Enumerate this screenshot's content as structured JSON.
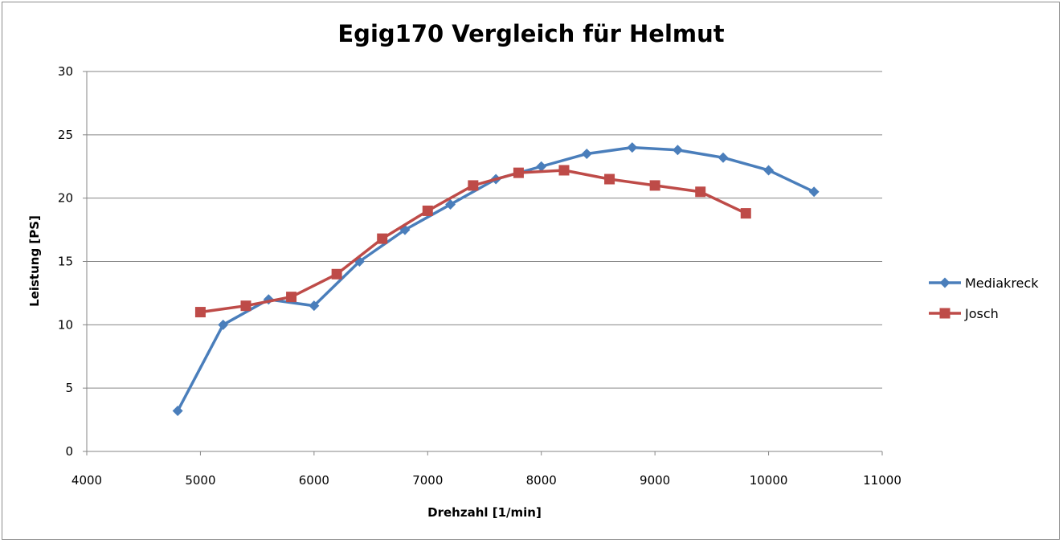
{
  "chart_data": {
    "type": "line",
    "title": "Egig170 Vergleich für Helmut",
    "xlabel": "Drehzahl [1/min]",
    "ylabel": "Leistung [PS]",
    "xlim": [
      4000,
      11000
    ],
    "ylim": [
      0,
      30
    ],
    "xticks": [
      4000,
      5000,
      6000,
      7000,
      8000,
      9000,
      10000,
      11000
    ],
    "yticks": [
      0,
      5,
      10,
      15,
      20,
      25,
      30
    ],
    "grid": "horizontal",
    "legend_position": "right",
    "series": [
      {
        "name": "Mediakreck",
        "color": "#4a7ebb",
        "marker": "diamond",
        "x": [
          4800,
          5200,
          5600,
          6000,
          6400,
          6800,
          7200,
          7600,
          8000,
          8400,
          8800,
          9200,
          9600,
          10000,
          10400
        ],
        "y": [
          3.2,
          10.0,
          12.0,
          11.5,
          15.0,
          17.5,
          19.5,
          21.5,
          22.5,
          23.5,
          24.0,
          23.8,
          23.2,
          22.2,
          20.5
        ]
      },
      {
        "name": "Josch",
        "color": "#be4b48",
        "marker": "square",
        "x": [
          5000,
          5400,
          5800,
          6200,
          6600,
          7000,
          7400,
          7800,
          8200,
          8600,
          9000,
          9400,
          9800
        ],
        "y": [
          11.0,
          11.5,
          12.2,
          14.0,
          16.8,
          19.0,
          21.0,
          22.0,
          22.2,
          21.5,
          21.0,
          20.5,
          18.8
        ]
      }
    ]
  }
}
